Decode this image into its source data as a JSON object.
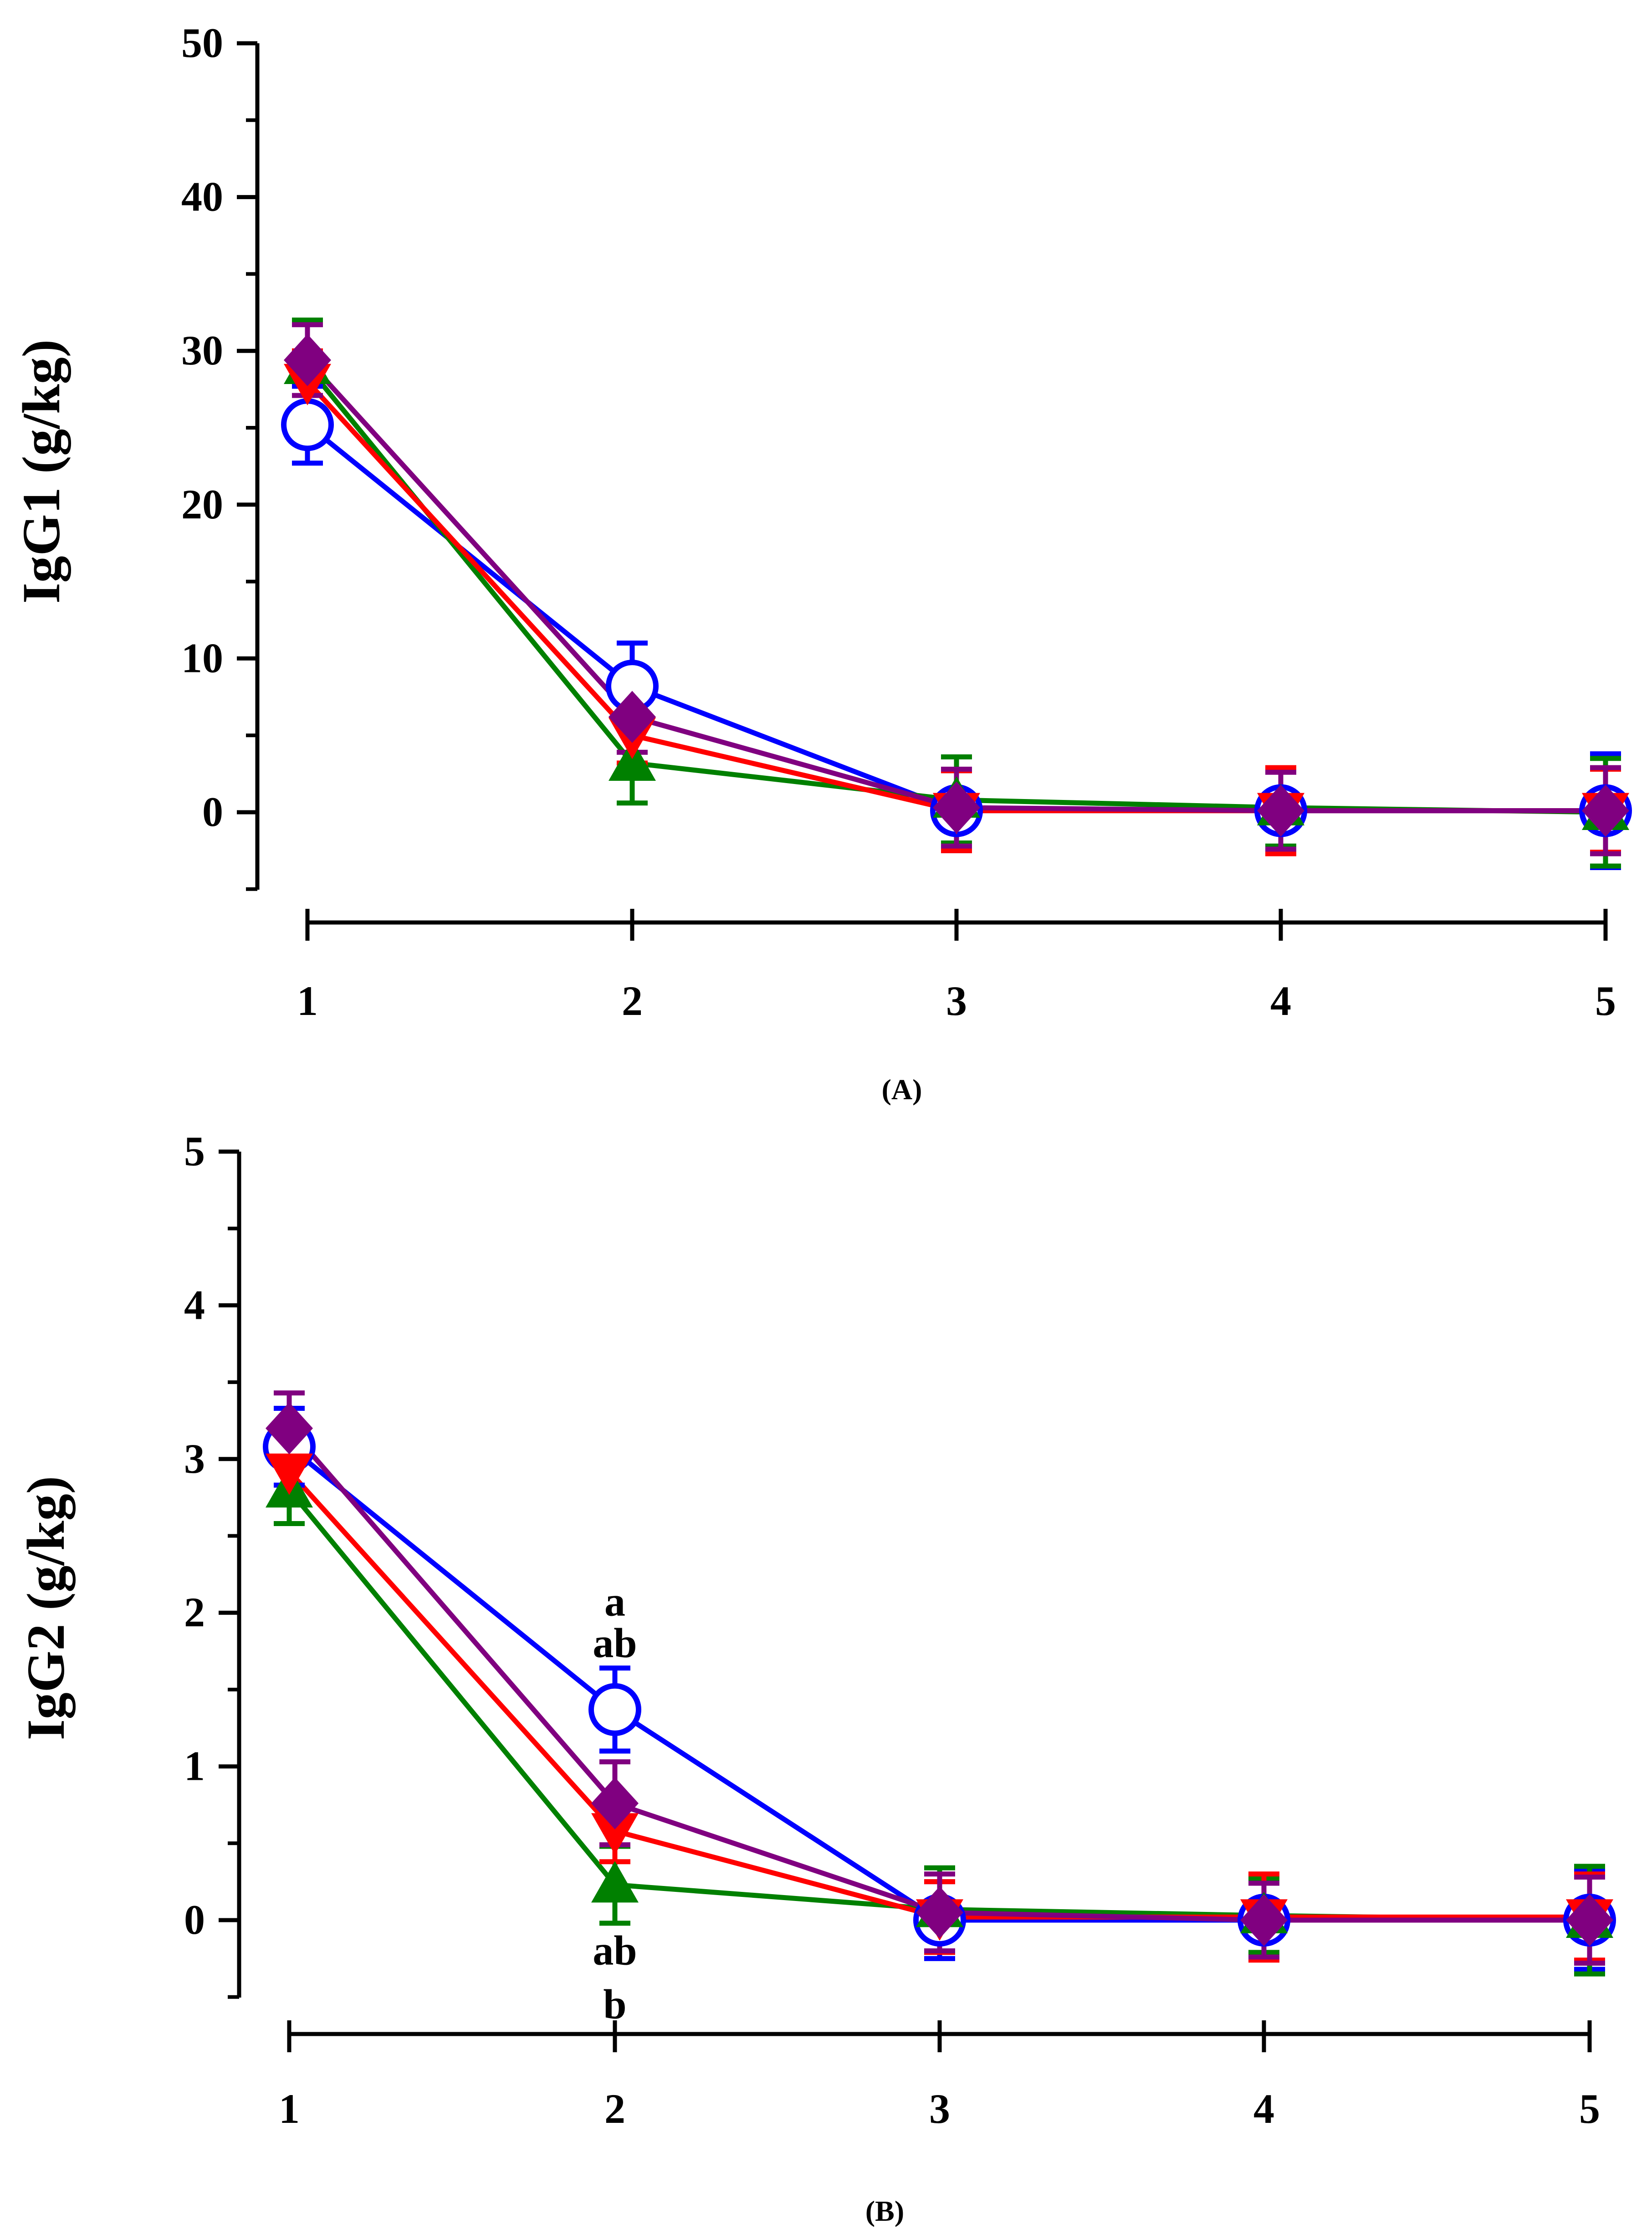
{
  "chart_data": [
    {
      "type": "line",
      "title": "",
      "panel_label": "(A)",
      "xlabel": "",
      "ylabel": "IgG1 (g/kg)",
      "categories": [
        "1",
        "2",
        "3",
        "4",
        "5"
      ],
      "x": [
        1,
        2,
        3,
        4,
        5
      ],
      "ylim": [
        -5,
        50
      ],
      "yticks": [
        0,
        10,
        20,
        30,
        40,
        50
      ],
      "ytick_labels": [
        "0",
        "10",
        "20",
        "30",
        "40",
        "50"
      ],
      "grid": false,
      "series": [
        {
          "name": "blue-open-circle",
          "color": "#0000ff",
          "marker": "circle-open",
          "values": [
            25.2,
            8.2,
            0.1,
            0.1,
            0.1
          ],
          "errors": [
            2.5,
            2.8,
            2.6,
            2.6,
            3.7
          ]
        },
        {
          "name": "green-triangle",
          "color": "#008000",
          "marker": "triangle-up",
          "values": [
            29.0,
            3.2,
            0.8,
            0.3,
            0.0
          ],
          "errors": [
            3.0,
            2.6,
            2.8,
            2.5,
            3.5
          ]
        },
        {
          "name": "red-triangle-down",
          "color": "#ff0000",
          "marker": "triangle-down",
          "values": [
            28.0,
            5.0,
            0.1,
            0.1,
            0.1
          ],
          "errors": [
            2.0,
            1.8,
            2.6,
            2.8,
            2.7
          ]
        },
        {
          "name": "purple-diamond",
          "color": "#800080",
          "marker": "diamond",
          "values": [
            29.4,
            6.2,
            0.3,
            0.1,
            0.1
          ],
          "errors": [
            2.3,
            2.3,
            2.5,
            2.5,
            2.8
          ]
        }
      ],
      "annotations": []
    },
    {
      "type": "line",
      "title": "",
      "panel_label": "(B)",
      "xlabel": "",
      "ylabel": "IgG2 (g/kg)",
      "categories": [
        "1",
        "2",
        "3",
        "4",
        "5"
      ],
      "x": [
        1,
        2,
        3,
        4,
        5
      ],
      "ylim": [
        -0.5,
        5
      ],
      "yticks": [
        0,
        1,
        2,
        3,
        4,
        5
      ],
      "ytick_labels": [
        "0",
        "1",
        "2",
        "3",
        "4",
        "5"
      ],
      "grid": false,
      "series": [
        {
          "name": "blue-open-circle",
          "color": "#0000ff",
          "marker": "circle-open",
          "values": [
            3.08,
            1.37,
            0.0,
            0.0,
            0.0
          ],
          "errors": [
            0.25,
            0.27,
            0.25,
            0.25,
            0.32
          ]
        },
        {
          "name": "green-triangle",
          "color": "#008000",
          "marker": "triangle-up",
          "values": [
            2.8,
            0.23,
            0.07,
            0.03,
            0.0
          ],
          "errors": [
            0.22,
            0.25,
            0.27,
            0.24,
            0.35
          ]
        },
        {
          "name": "red-triangle-down",
          "color": "#ff0000",
          "marker": "triangle-down",
          "values": [
            2.92,
            0.58,
            0.02,
            0.02,
            0.02
          ],
          "errors": [
            0.2,
            0.2,
            0.23,
            0.28,
            0.28
          ]
        },
        {
          "name": "purple-diamond",
          "color": "#800080",
          "marker": "diamond",
          "values": [
            3.2,
            0.76,
            0.05,
            0.0,
            0.0
          ],
          "errors": [
            0.23,
            0.27,
            0.25,
            0.24,
            0.28
          ]
        }
      ],
      "annotations": [
        {
          "text": "a",
          "x": 2,
          "y": 2.07
        },
        {
          "text": "ab",
          "x": 2,
          "y": 1.8
        },
        {
          "text": "ab",
          "x": 2,
          "y": -0.2
        },
        {
          "text": "b",
          "x": 2,
          "y": -0.55
        }
      ]
    }
  ]
}
